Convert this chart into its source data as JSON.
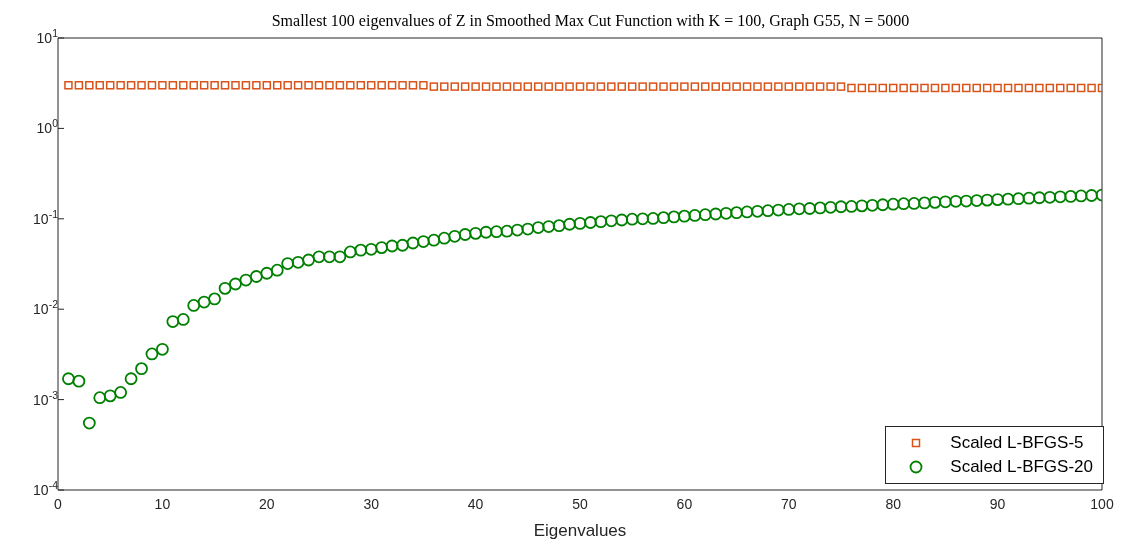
{
  "chart_data": {
    "type": "scatter",
    "title": "Smallest 100 eigenvalues of Z in Smoothed Max Cut Function with K = 100, Graph G55, N = 5000",
    "xlabel": "Eigenvalues",
    "x": [
      1,
      2,
      3,
      4,
      5,
      6,
      7,
      8,
      9,
      10,
      11,
      12,
      13,
      14,
      15,
      16,
      17,
      18,
      19,
      20,
      21,
      22,
      23,
      24,
      25,
      26,
      27,
      28,
      29,
      30,
      31,
      32,
      33,
      34,
      35,
      36,
      37,
      38,
      39,
      40,
      41,
      42,
      43,
      44,
      45,
      46,
      47,
      48,
      49,
      50,
      51,
      52,
      53,
      54,
      55,
      56,
      57,
      58,
      59,
      60,
      61,
      62,
      63,
      64,
      65,
      66,
      67,
      68,
      69,
      70,
      71,
      72,
      73,
      74,
      75,
      76,
      77,
      78,
      79,
      80,
      81,
      82,
      83,
      84,
      85,
      86,
      87,
      88,
      89,
      90,
      91,
      92,
      93,
      94,
      95,
      96,
      97,
      98,
      99,
      100
    ],
    "series": [
      {
        "name": "Scaled L-BFGS-5",
        "color": "#d95319",
        "marker": "square",
        "values": [
          3.0,
          3.0,
          3.0,
          3.0,
          3.0,
          3.0,
          3.0,
          3.0,
          3.0,
          3.0,
          3.0,
          3.0,
          3.0,
          3.0,
          3.0,
          3.0,
          3.0,
          3.0,
          3.0,
          3.0,
          3.0,
          3.0,
          3.0,
          3.0,
          3.0,
          3.0,
          3.0,
          3.0,
          3.0,
          3.0,
          3.0,
          3.0,
          3.0,
          3.0,
          3.0,
          2.9,
          2.9,
          2.9,
          2.9,
          2.9,
          2.9,
          2.9,
          2.9,
          2.9,
          2.9,
          2.9,
          2.9,
          2.9,
          2.9,
          2.9,
          2.9,
          2.9,
          2.9,
          2.9,
          2.9,
          2.9,
          2.9,
          2.9,
          2.9,
          2.9,
          2.9,
          2.9,
          2.9,
          2.9,
          2.9,
          2.9,
          2.9,
          2.9,
          2.9,
          2.9,
          2.9,
          2.9,
          2.9,
          2.9,
          2.9,
          2.8,
          2.8,
          2.8,
          2.8,
          2.8,
          2.8,
          2.8,
          2.8,
          2.8,
          2.8,
          2.8,
          2.8,
          2.8,
          2.8,
          2.8,
          2.8,
          2.8,
          2.8,
          2.8,
          2.8,
          2.8,
          2.8,
          2.8,
          2.8,
          2.8
        ]
      },
      {
        "name": "Scaled L-BFGS-20",
        "color": "#008000",
        "marker": "circle",
        "values": [
          0.0017,
          0.0016,
          0.00055,
          0.00105,
          0.0011,
          0.0012,
          0.0017,
          0.0022,
          0.0032,
          0.0036,
          0.0073,
          0.0077,
          0.011,
          0.012,
          0.013,
          0.017,
          0.019,
          0.021,
          0.023,
          0.025,
          0.027,
          0.032,
          0.033,
          0.035,
          0.038,
          0.038,
          0.038,
          0.043,
          0.045,
          0.046,
          0.048,
          0.05,
          0.051,
          0.054,
          0.056,
          0.058,
          0.061,
          0.064,
          0.067,
          0.069,
          0.071,
          0.072,
          0.073,
          0.075,
          0.077,
          0.08,
          0.082,
          0.084,
          0.087,
          0.089,
          0.091,
          0.093,
          0.095,
          0.097,
          0.099,
          0.1,
          0.101,
          0.103,
          0.105,
          0.107,
          0.109,
          0.111,
          0.113,
          0.115,
          0.117,
          0.119,
          0.121,
          0.123,
          0.125,
          0.127,
          0.129,
          0.13,
          0.132,
          0.134,
          0.136,
          0.137,
          0.139,
          0.141,
          0.143,
          0.145,
          0.147,
          0.148,
          0.15,
          0.152,
          0.154,
          0.156,
          0.157,
          0.159,
          0.161,
          0.163,
          0.165,
          0.167,
          0.169,
          0.171,
          0.173,
          0.175,
          0.177,
          0.179,
          0.181,
          0.183
        ]
      }
    ],
    "xlim": [
      0,
      100
    ],
    "xticks": [
      0,
      10,
      20,
      30,
      40,
      50,
      60,
      70,
      80,
      90,
      100
    ],
    "ylim": [
      0.0001,
      10
    ],
    "yticks": [
      {
        "value": 0.0001,
        "label": "10$^{-4}$"
      },
      {
        "value": 0.001,
        "label": "10$^{-3}$"
      },
      {
        "value": 0.01,
        "label": "10$^{-2}$"
      },
      {
        "value": 0.1,
        "label": "10$^{-1}$"
      },
      {
        "value": 1,
        "label": "10$^{0}$"
      },
      {
        "value": 10,
        "label": "10$^{1}$"
      }
    ],
    "log": "y",
    "grid": false,
    "legend": "bottom right"
  }
}
